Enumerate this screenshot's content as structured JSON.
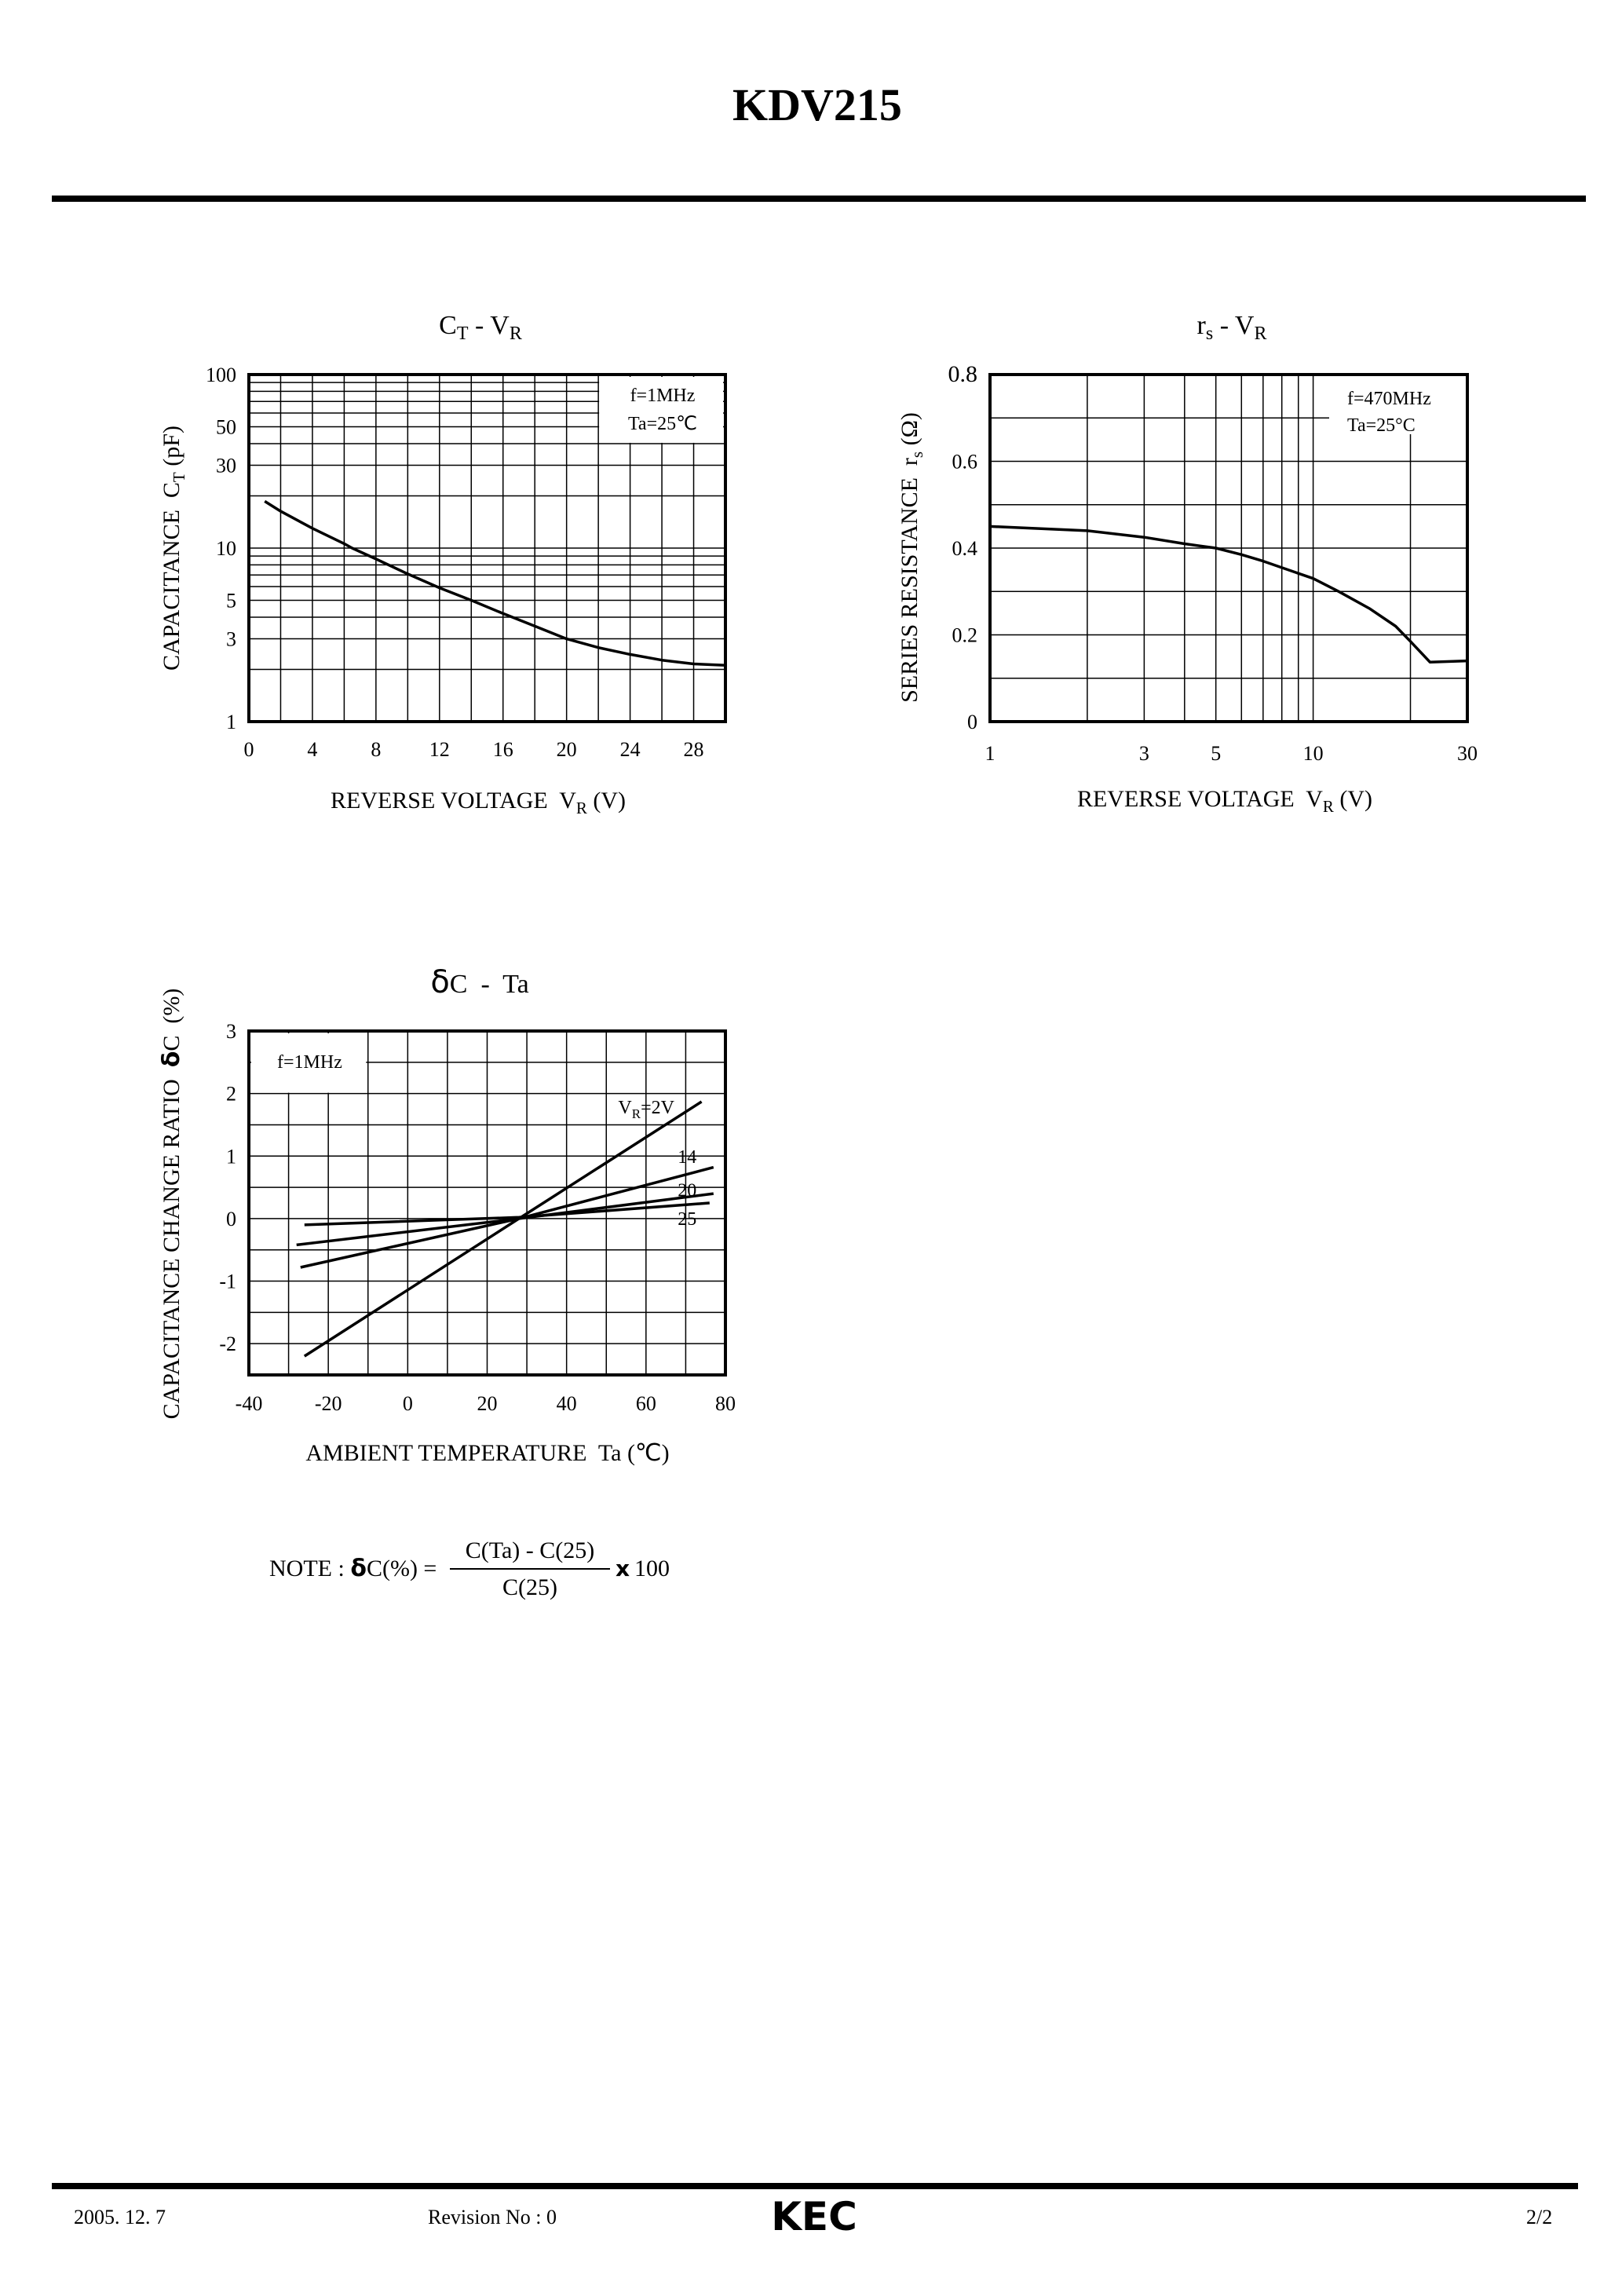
{
  "header": {
    "title": "KDV215"
  },
  "footer": {
    "date": "2005. 12. 7",
    "revision": "Revision No : 0",
    "logo": "KEC",
    "page": "2/2",
    "logo_color": "#5a5a5a"
  },
  "note": {
    "prefix": "NOTE : ",
    "delta": "δ",
    "lhs": "C(%) = ",
    "numerator": "C(Ta) - C(25)",
    "denominator": "C(25)",
    "times": "x",
    "factor": "100"
  },
  "chart_data": [
    {
      "type": "line",
      "title": {
        "a": "C",
        "a_sub": "T",
        "sep": " - ",
        "b": "V",
        "b_sub": "R"
      },
      "xlabel": {
        "a": "REVERSE VOLTAGE  V",
        "sub": "R",
        "b": " (V)"
      },
      "ylabel": {
        "a": "CAPACITANCE  C",
        "sub": "T",
        "b": " (pF)"
      },
      "legend": [
        "f=1MHz",
        "Ta=25℃"
      ],
      "xscale": "linear",
      "yscale": "log",
      "xlim": [
        0,
        30
      ],
      "ylim": [
        1,
        100
      ],
      "x_grid_step": 2,
      "xticks": [
        "0",
        "4",
        "8",
        "12",
        "16",
        "20",
        "24",
        "28"
      ],
      "yticks": [
        "100",
        "50",
        "30",
        "10",
        "5",
        "3",
        "1"
      ],
      "series": [
        {
          "name": "CT",
          "x": [
            1,
            2,
            4,
            6,
            6.5,
            8,
            10,
            12,
            14,
            16,
            18,
            20,
            22,
            24,
            26,
            28,
            30
          ],
          "y": [
            18.6,
            16.3,
            13,
            10.6,
            10,
            8.65,
            7.1,
            5.9,
            5.0,
            4.2,
            3.55,
            3.0,
            2.67,
            2.44,
            2.26,
            2.15,
            2.11
          ]
        }
      ]
    },
    {
      "type": "line",
      "title": {
        "a": "r",
        "a_sub": "s",
        "sep": " - ",
        "b": "V",
        "b_sub": "R"
      },
      "xlabel": {
        "a": "REVERSE VOLTAGE  V",
        "sub": "R",
        "b": " (V)"
      },
      "ylabel": {
        "a": "SERIES RESISTANCE  r",
        "sub": "s",
        "b": " (Ω)"
      },
      "legend": [
        "f=470MHz",
        "Ta=25°C"
      ],
      "xscale": "log",
      "yscale": "linear",
      "xlim": [
        1,
        30
      ],
      "ylim": [
        0,
        0.8
      ],
      "x_grid": [
        2,
        3,
        4,
        5,
        6,
        7,
        8,
        9,
        10,
        20
      ],
      "y_grid_step": 0.1,
      "xticks": [
        "1",
        "3",
        "5",
        "10",
        "30"
      ],
      "yticks": [
        "0.8",
        "0.6",
        "0.4",
        "0.2",
        "0"
      ],
      "series": [
        {
          "name": "rs",
          "x": [
            1,
            2,
            3,
            4,
            5,
            6,
            7,
            8,
            10,
            12,
            15,
            18,
            20,
            23,
            30
          ],
          "y": [
            0.45,
            0.44,
            0.425,
            0.41,
            0.4,
            0.385,
            0.37,
            0.355,
            0.33,
            0.3,
            0.26,
            0.22,
            0.185,
            0.137,
            0.14
          ]
        }
      ]
    },
    {
      "type": "line",
      "title": {
        "a": "δ",
        "b": "C  -  Ta"
      },
      "xlabel": {
        "a": "AMBIENT TEMPERATURE  Ta (℃)"
      },
      "ylabel": {
        "a": "CAPACITANCE CHANGE RATIO  ",
        "delta": "δ",
        "b": "C  (%)"
      },
      "legend": [
        "f=1MHz"
      ],
      "xscale": "linear",
      "yscale": "linear",
      "xlim": [
        -40,
        80
      ],
      "ylim": [
        -2.5,
        3
      ],
      "x_grid_step": 10,
      "y_grid_step": 0.5,
      "xticks": [
        "-40",
        "-20",
        "0",
        "20",
        "40",
        "60",
        "80"
      ],
      "yticks": [
        "3",
        "2",
        "1",
        "0",
        "-1",
        "-2"
      ],
      "series": [
        {
          "name": "VR=2V",
          "label": {
            "a": "V",
            "sub": "R",
            "b": "=2V"
          },
          "x": [
            -26,
            28,
            74
          ],
          "y": [
            -2.2,
            0,
            1.87
          ]
        },
        {
          "name": "14",
          "label": {
            "a": "14"
          },
          "x": [
            -27,
            28,
            77
          ],
          "y": [
            -0.78,
            0,
            0.82
          ]
        },
        {
          "name": "20",
          "label": {
            "a": "20"
          },
          "x": [
            -28,
            28,
            77
          ],
          "y": [
            -0.42,
            0,
            0.4
          ]
        },
        {
          "name": "25",
          "label": {
            "a": "25"
          },
          "x": [
            -26,
            28,
            76
          ],
          "y": [
            -0.1,
            0.02,
            0.25
          ]
        }
      ]
    }
  ]
}
